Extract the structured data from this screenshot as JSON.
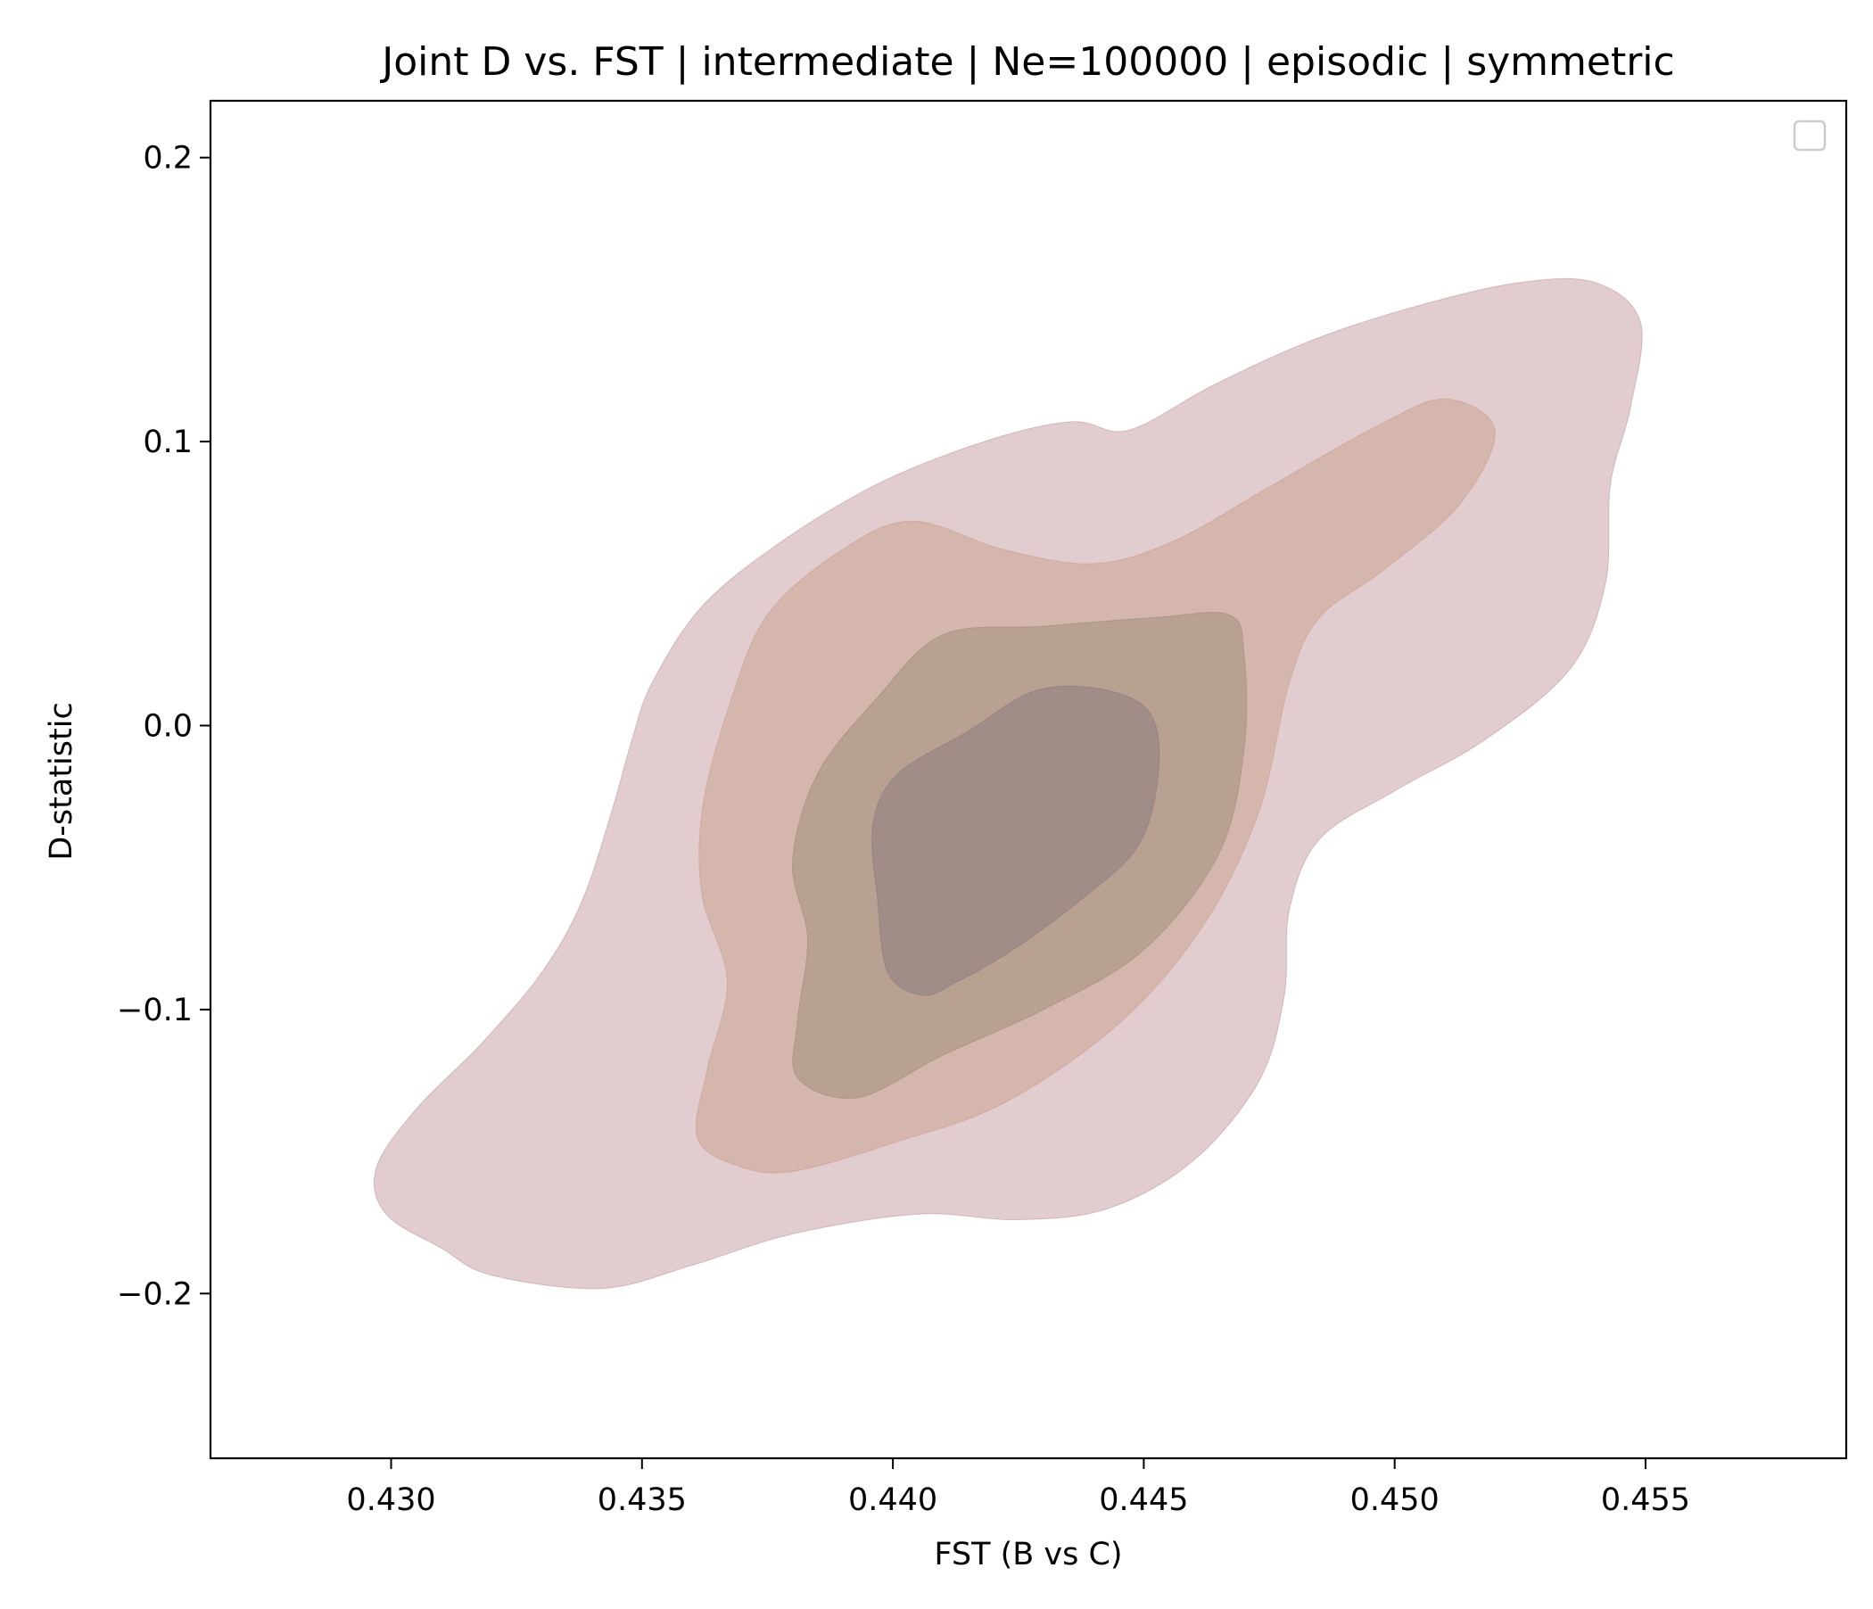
{
  "chart_data": {
    "type": "kde_contour",
    "title": "Joint D vs. FST | intermediate | Ne=100000 | episodic | symmetric",
    "xlabel": "FST (B vs C)",
    "ylabel": "D-statistic",
    "xlim": [
      0.4264,
      0.459
    ],
    "ylim": [
      -0.258,
      0.22
    ],
    "xticks": [
      0.43,
      0.435,
      0.44,
      0.445,
      0.45,
      0.455
    ],
    "xtick_labels": [
      "0.430",
      "0.435",
      "0.440",
      "0.445",
      "0.450",
      "0.455"
    ],
    "yticks": [
      -0.2,
      -0.1,
      0.0,
      0.1,
      0.2
    ],
    "ytick_labels": [
      "−0.2",
      "−0.1",
      "0.0",
      "0.1",
      "0.2"
    ],
    "grid": false,
    "legend": {
      "placement": "top-right",
      "entries": []
    },
    "levels": [
      {
        "level": 1,
        "fill": "#c49a9f",
        "opacity": 0.5,
        "polygon": [
          [
            0.4342,
            -0.1982
          ],
          [
            0.432,
            -0.1935
          ],
          [
            0.431,
            -0.184
          ],
          [
            0.4299,
            -0.172
          ],
          [
            0.4297,
            -0.156
          ],
          [
            0.4305,
            -0.135
          ],
          [
            0.4318,
            -0.112
          ],
          [
            0.433,
            -0.087
          ],
          [
            0.4338,
            -0.062
          ],
          [
            0.4344,
            -0.03
          ],
          [
            0.4348,
            -0.005
          ],
          [
            0.4352,
            0.015
          ],
          [
            0.4362,
            0.042
          ],
          [
            0.4378,
            0.065
          ],
          [
            0.4398,
            0.086
          ],
          [
            0.442,
            0.101
          ],
          [
            0.4436,
            0.107
          ],
          [
            0.4447,
            0.104
          ],
          [
            0.4464,
            0.12
          ],
          [
            0.4484,
            0.136
          ],
          [
            0.4505,
            0.148
          ],
          [
            0.4525,
            0.156
          ],
          [
            0.454,
            0.156
          ],
          [
            0.4549,
            0.142
          ],
          [
            0.4547,
            0.112
          ],
          [
            0.4543,
            0.085
          ],
          [
            0.4542,
            0.05
          ],
          [
            0.4535,
            0.02
          ],
          [
            0.4518,
            -0.005
          ],
          [
            0.45,
            -0.023
          ],
          [
            0.4485,
            -0.04
          ],
          [
            0.4479,
            -0.065
          ],
          [
            0.4478,
            -0.095
          ],
          [
            0.4473,
            -0.125
          ],
          [
            0.446,
            -0.153
          ],
          [
            0.4443,
            -0.17
          ],
          [
            0.4425,
            -0.174
          ],
          [
            0.4405,
            -0.172
          ],
          [
            0.438,
            -0.179
          ],
          [
            0.436,
            -0.19
          ]
        ]
      },
      {
        "level": 2,
        "fill": "#c9a08a",
        "opacity": 0.5,
        "polygon": [
          [
            0.4369,
            -0.155
          ],
          [
            0.4361,
            -0.145
          ],
          [
            0.4363,
            -0.121
          ],
          [
            0.4367,
            -0.09
          ],
          [
            0.4362,
            -0.06
          ],
          [
            0.4362,
            -0.03
          ],
          [
            0.4367,
            0.005
          ],
          [
            0.4375,
            0.039
          ],
          [
            0.439,
            0.062
          ],
          [
            0.4404,
            0.072
          ],
          [
            0.4422,
            0.062
          ],
          [
            0.444,
            0.057
          ],
          [
            0.4456,
            0.065
          ],
          [
            0.4475,
            0.084
          ],
          [
            0.4496,
            0.105
          ],
          [
            0.451,
            0.115
          ],
          [
            0.452,
            0.104
          ],
          [
            0.4513,
            0.078
          ],
          [
            0.4498,
            0.055
          ],
          [
            0.4485,
            0.038
          ],
          [
            0.4479,
            0.015
          ],
          [
            0.4473,
            -0.03
          ],
          [
            0.4462,
            -0.07
          ],
          [
            0.4445,
            -0.105
          ],
          [
            0.4422,
            -0.133
          ],
          [
            0.44,
            -0.147
          ],
          [
            0.438,
            -0.157
          ]
        ]
      },
      {
        "level": 3,
        "fill": "#9c8c76",
        "opacity": 0.5,
        "polygon": [
          [
            0.4393,
            -0.131
          ],
          [
            0.4381,
            -0.124
          ],
          [
            0.4381,
            -0.104
          ],
          [
            0.4383,
            -0.075
          ],
          [
            0.438,
            -0.048
          ],
          [
            0.4385,
            -0.017
          ],
          [
            0.4397,
            0.01
          ],
          [
            0.441,
            0.032
          ],
          [
            0.443,
            0.035
          ],
          [
            0.4452,
            0.038
          ],
          [
            0.4467,
            0.039
          ],
          [
            0.447,
            0.025
          ],
          [
            0.447,
            -0.008
          ],
          [
            0.4465,
            -0.045
          ],
          [
            0.445,
            -0.079
          ],
          [
            0.443,
            -0.1
          ],
          [
            0.441,
            -0.116
          ]
        ]
      },
      {
        "level": 4,
        "fill": "#8a7a80",
        "opacity": 0.5,
        "polygon": [
          [
            0.4406,
            -0.095
          ],
          [
            0.4399,
            -0.087
          ],
          [
            0.4397,
            -0.062
          ],
          [
            0.4396,
            -0.035
          ],
          [
            0.4401,
            -0.017
          ],
          [
            0.4415,
            -0.002
          ],
          [
            0.4428,
            0.012
          ],
          [
            0.4441,
            0.013
          ],
          [
            0.4451,
            0.005
          ],
          [
            0.4453,
            -0.015
          ],
          [
            0.4449,
            -0.042
          ],
          [
            0.4437,
            -0.062
          ],
          [
            0.4423,
            -0.08
          ],
          [
            0.4413,
            -0.09
          ]
        ]
      }
    ]
  }
}
